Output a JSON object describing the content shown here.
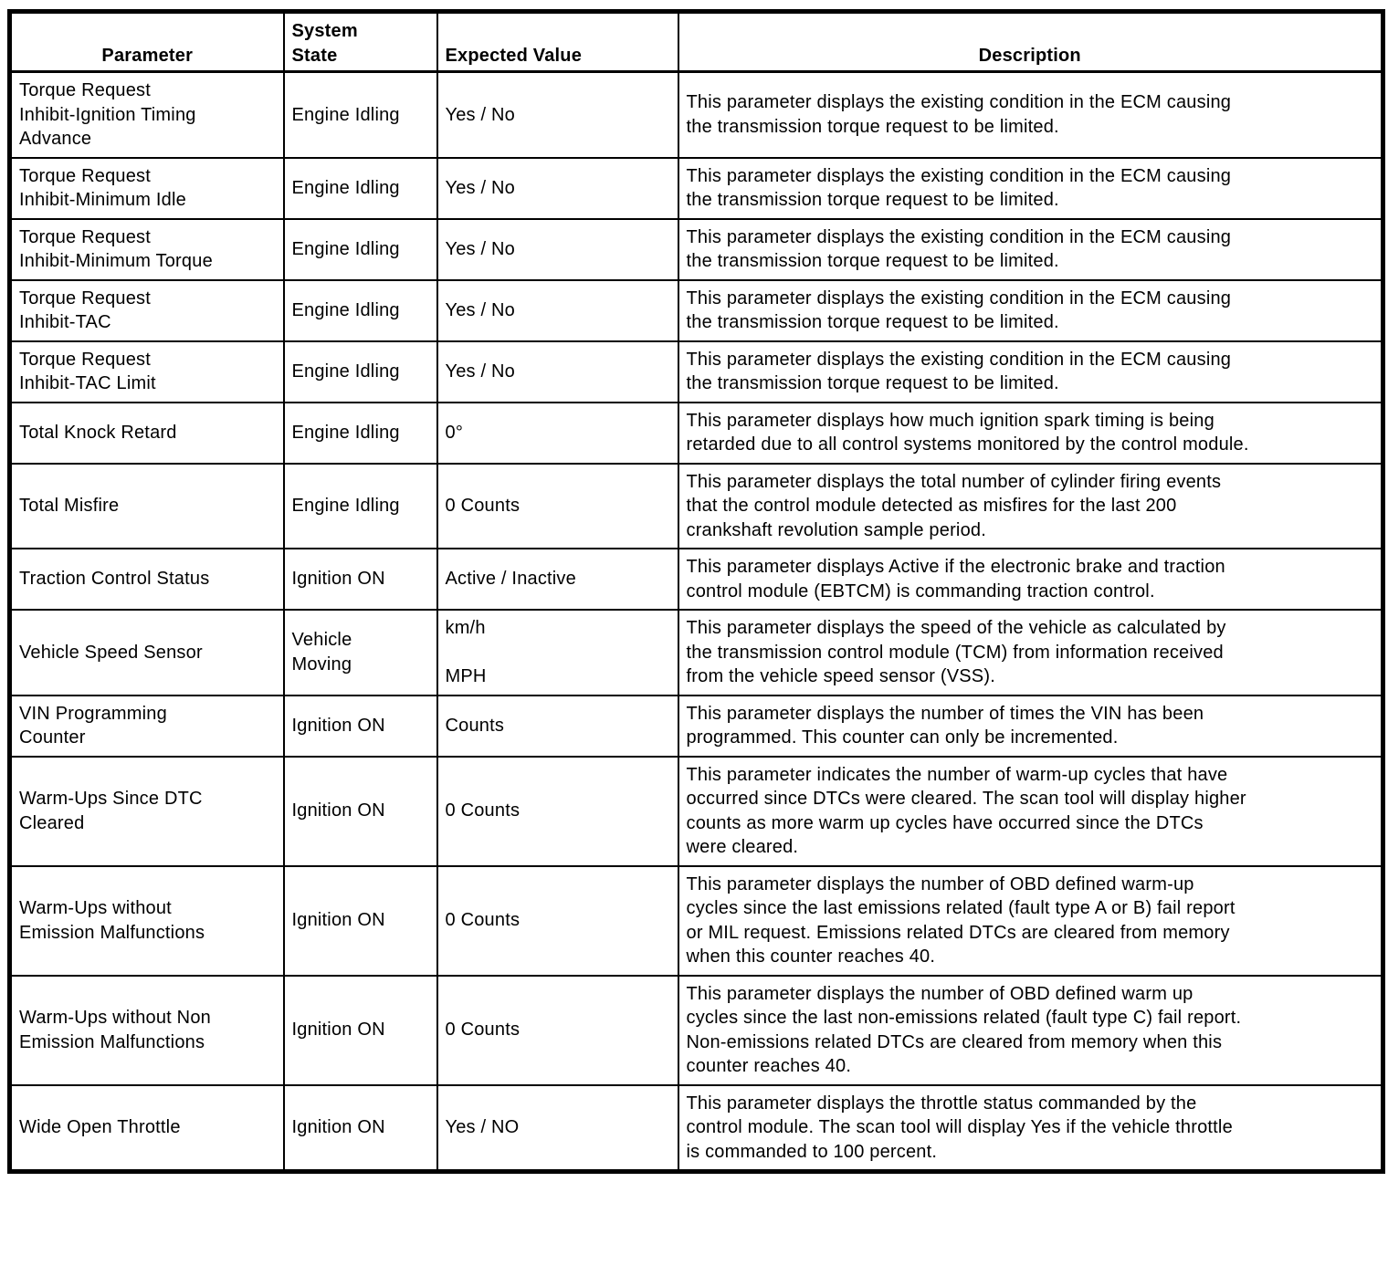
{
  "table": {
    "headers": {
      "parameter": "Parameter",
      "system_state": "System\nState",
      "expected_value": "Expected Value",
      "description": "Description"
    },
    "rows": [
      {
        "parameter": "Torque Request\nInhibit-Ignition Timing\nAdvance",
        "system_state": "Engine Idling",
        "expected_value": "Yes / No",
        "description": "This parameter displays the existing condition in the ECM causing\nthe transmission torque request to be limited."
      },
      {
        "parameter": "Torque Request\nInhibit-Minimum Idle",
        "system_state": "Engine Idling",
        "expected_value": "Yes / No",
        "description": "This parameter displays the existing condition in the ECM causing\nthe transmission torque request to be limited."
      },
      {
        "parameter": "Torque Request\nInhibit-Minimum Torque",
        "system_state": "Engine Idling",
        "expected_value": "Yes / No",
        "description": "This parameter displays the existing condition in the ECM causing\nthe transmission torque request to be limited."
      },
      {
        "parameter": "Torque Request\nInhibit-TAC",
        "system_state": "Engine Idling",
        "expected_value": "Yes / No",
        "description": "This parameter displays the existing condition in the ECM causing\nthe transmission torque request to be limited."
      },
      {
        "parameter": "Torque Request\nInhibit-TAC Limit",
        "system_state": "Engine Idling",
        "expected_value": "Yes / No",
        "description": "This parameter displays the existing condition in the ECM causing\nthe transmission torque request to be limited."
      },
      {
        "parameter": "Total Knock Retard",
        "system_state": "Engine Idling",
        "expected_value": "0°",
        "description": "This parameter displays how much ignition spark timing is being\nretarded due to all control systems monitored by the control module."
      },
      {
        "parameter": "Total Misfire",
        "system_state": "Engine Idling",
        "expected_value": "0 Counts",
        "description": "This parameter displays the total number of cylinder firing events\nthat the control module detected as misfires for the last 200\ncrankshaft revolution sample period."
      },
      {
        "parameter": "Traction Control Status",
        "system_state": "Ignition ON",
        "expected_value": "Active / Inactive",
        "description": "This parameter displays Active if the electronic brake and traction\ncontrol module (EBTCM) is commanding traction control."
      },
      {
        "parameter": "Vehicle Speed Sensor",
        "system_state": "Vehicle\nMoving",
        "expected_value": "km/h\n\nMPH",
        "description": "This parameter displays the speed of the vehicle as calculated by\nthe transmission control module (TCM) from information received\nfrom the vehicle speed sensor (VSS)."
      },
      {
        "parameter": "VIN Programming\nCounter",
        "system_state": "Ignition ON",
        "expected_value": "Counts",
        "description": "This parameter displays the number of times the VIN has been\nprogrammed. This counter can only be incremented."
      },
      {
        "parameter": "Warm-Ups Since DTC\nCleared",
        "system_state": "Ignition ON",
        "expected_value": "0 Counts",
        "description": "This parameter indicates the number of warm-up cycles that have\noccurred since DTCs were cleared. The scan tool will display higher\ncounts as more warm up cycles have occurred since the DTCs\nwere cleared."
      },
      {
        "parameter": "Warm-Ups without\nEmission Malfunctions",
        "system_state": "Ignition ON",
        "expected_value": "0 Counts",
        "description": "This parameter displays the number of OBD defined warm-up\ncycles since the last emissions related (fault type A or B) fail report\nor MIL request. Emissions related DTCs are cleared from memory\nwhen this counter reaches 40."
      },
      {
        "parameter": "Warm-Ups without Non\nEmission Malfunctions",
        "system_state": "Ignition ON",
        "expected_value": "0 Counts",
        "description": "This parameter displays the number of OBD defined warm up\ncycles since the last non-emissions related (fault type C) fail report.\nNon-emissions related DTCs are cleared from memory when this\ncounter reaches 40."
      },
      {
        "parameter": "Wide Open Throttle",
        "system_state": "Ignition ON",
        "expected_value": "Yes / NO",
        "description": "This parameter displays the throttle status commanded by the\ncontrol module. The scan tool will display Yes if the vehicle throttle\nis commanded to 100 percent."
      }
    ]
  }
}
